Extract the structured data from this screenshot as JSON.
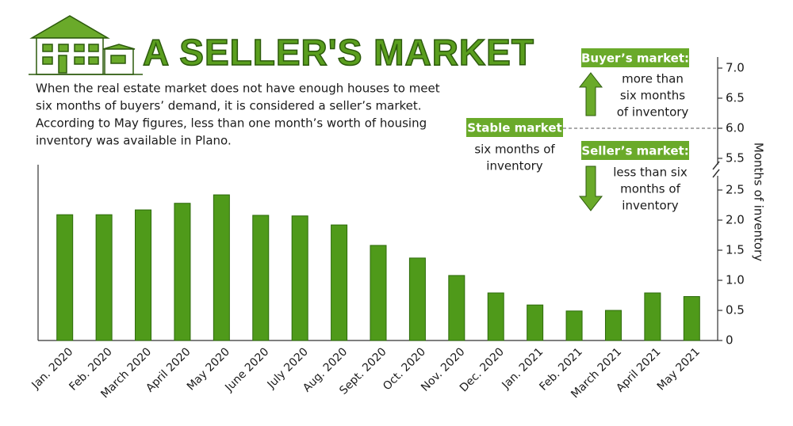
{
  "chart_data": {
    "type": "bar",
    "title": "A SELLER'S MARKET",
    "description": [
      "When the real estate market does not have enough houses to meet",
      "six months of buyers’ demand, it is considered a seller’s market.",
      "According to May figures, less than one month’s worth of housing",
      "inventory was available in Plano."
    ],
    "y_label": "Months of inventory",
    "categories": [
      "Jan. 2020",
      "Feb. 2020",
      "March 2020",
      "April 2020",
      "May 2020",
      "June 2020",
      "July 2020",
      "Aug. 2020",
      "Sept. 2020",
      "Oct. 2020",
      "Nov. 2020",
      "Dec. 2020",
      "Jan. 2021",
      "Feb. 2021",
      "March 2021",
      "April 2021",
      "May 2021"
    ],
    "values": [
      2.09,
      2.09,
      2.17,
      2.28,
      2.42,
      2.08,
      2.07,
      1.92,
      1.58,
      1.37,
      1.08,
      0.79,
      0.59,
      0.49,
      0.5,
      0.79,
      0.73
    ],
    "color": "#4f9a1a",
    "ylim": [
      0,
      7
    ],
    "ybreak": [
      2.5,
      5.5
    ],
    "yticks": [
      0,
      0.5,
      {
        "value": 1,
        "label": "1.0"
      },
      1.5,
      {
        "value": 2,
        "label": "2.0"
      },
      2.5,
      5.5,
      {
        "value": 6,
        "label": "6.0"
      },
      6.5,
      {
        "value": 7,
        "label": "7.0"
      }
    ],
    "stable_level": 6,
    "buyers_label": "Buyer’s market:",
    "buyers_note": [
      "more than",
      "six months",
      "of inventory"
    ],
    "stable_label": "Stable market",
    "stable_note": [
      "six months of",
      "inventory"
    ],
    "sellers_label": "Seller’s market:",
    "sellers_note": [
      "less than six",
      "months of",
      "inventory"
    ]
  }
}
